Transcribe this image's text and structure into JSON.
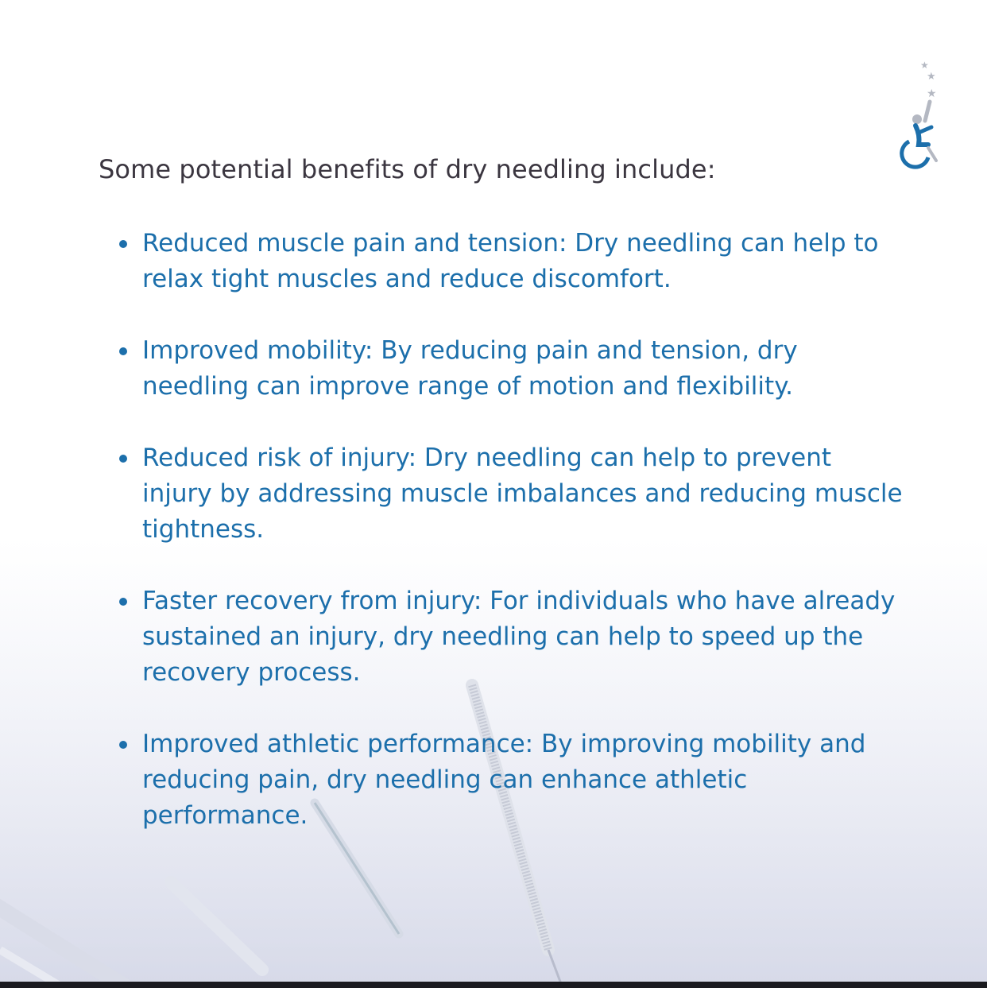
{
  "heading": "Some potential benefits of dry needling include:",
  "benefits": [
    {
      "text": "Reduced muscle pain and tension: Dry needling can help to relax tight muscles and reduce discomfort."
    },
    {
      "text": "Improved mobility: By reducing pain and tension, dry needling can improve range of motion and flexibility."
    },
    {
      "text": "Reduced risk of injury: Dry needling can help to prevent injury by addressing muscle imbalances and reducing muscle tightness."
    },
    {
      "text": "Faster recovery from injury: For individuals who have already sustained an injury, dry needling can help to speed up the recovery process."
    },
    {
      "text": "Improved athletic performance: By improving mobility and reducing pain, dry needling can enhance athletic performance."
    }
  ],
  "colors": {
    "heading": "#3b3640",
    "benefit_text": "#1c6fab",
    "logo_blue": "#1c6fab",
    "logo_grey": "#b4b8c2"
  },
  "logo": {
    "icon": "wheelchair-athlete-stars-icon"
  }
}
